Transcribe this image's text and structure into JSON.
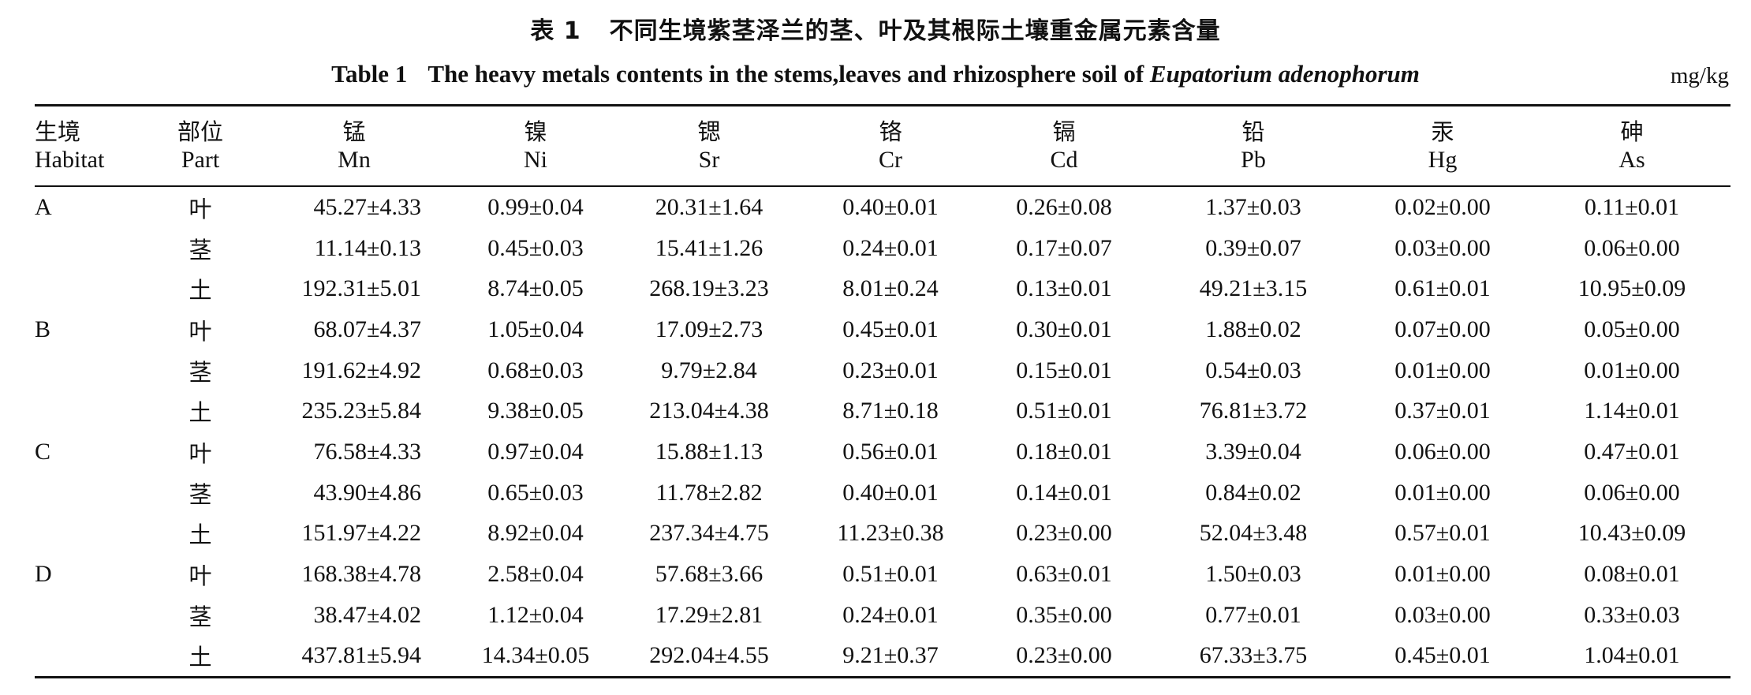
{
  "caption": {
    "zh_number": "表 1",
    "zh_title": "不同生境紫茎泽兰的茎、叶及其根际土壤重金属元素含量",
    "en_number": "Table 1",
    "en_title_prefix": "The heavy metals contents in the stems,leaves and rhizosphere soil of",
    "en_species": "Eupatorium adenophorum",
    "unit": "mg/kg"
  },
  "columns": [
    {
      "zh": "生境",
      "en": "Habitat"
    },
    {
      "zh": "部位",
      "en": "Part"
    },
    {
      "zh": "锰",
      "en": "Mn"
    },
    {
      "zh": "镍",
      "en": "Ni"
    },
    {
      "zh": "锶",
      "en": "Sr"
    },
    {
      "zh": "铬",
      "en": "Cr"
    },
    {
      "zh": "镉",
      "en": "Cd"
    },
    {
      "zh": "铅",
      "en": "Pb"
    },
    {
      "zh": "汞",
      "en": "Hg"
    },
    {
      "zh": "砷",
      "en": "As"
    }
  ],
  "rows": [
    [
      "A",
      "叶",
      "45.27±4.33",
      "0.99±0.04",
      "20.31±1.64",
      "0.40±0.01",
      "0.26±0.08",
      "1.37±0.03",
      "0.02±0.00",
      "0.11±0.01"
    ],
    [
      "",
      "茎",
      "11.14±0.13",
      "0.45±0.03",
      "15.41±1.26",
      "0.24±0.01",
      "0.17±0.07",
      "0.39±0.07",
      "0.03±0.00",
      "0.06±0.00"
    ],
    [
      "",
      "土",
      "192.31±5.01",
      "8.74±0.05",
      "268.19±3.23",
      "8.01±0.24",
      "0.13±0.01",
      "49.21±3.15",
      "0.61±0.01",
      "10.95±0.09"
    ],
    [
      "B",
      "叶",
      "68.07±4.37",
      "1.05±0.04",
      "17.09±2.73",
      "0.45±0.01",
      "0.30±0.01",
      "1.88±0.02",
      "0.07±0.00",
      "0.05±0.00"
    ],
    [
      "",
      "茎",
      "191.62±4.92",
      "0.68±0.03",
      "9.79±2.84",
      "0.23±0.01",
      "0.15±0.01",
      "0.54±0.03",
      "0.01±0.00",
      "0.01±0.00"
    ],
    [
      "",
      "土",
      "235.23±5.84",
      "9.38±0.05",
      "213.04±4.38",
      "8.71±0.18",
      "0.51±0.01",
      "76.81±3.72",
      "0.37±0.01",
      "1.14±0.01"
    ],
    [
      "C",
      "叶",
      "76.58±4.33",
      "0.97±0.04",
      "15.88±1.13",
      "0.56±0.01",
      "0.18±0.01",
      "3.39±0.04",
      "0.06±0.00",
      "0.47±0.01"
    ],
    [
      "",
      "茎",
      "43.90±4.86",
      "0.65±0.03",
      "11.78±2.82",
      "0.40±0.01",
      "0.14±0.01",
      "0.84±0.02",
      "0.01±0.00",
      "0.06±0.00"
    ],
    [
      "",
      "土",
      "151.97±4.22",
      "8.92±0.04",
      "237.34±4.75",
      "11.23±0.38",
      "0.23±0.00",
      "52.04±3.48",
      "0.57±0.01",
      "10.43±0.09"
    ],
    [
      "D",
      "叶",
      "168.38±4.78",
      "2.58±0.04",
      "57.68±3.66",
      "0.51±0.01",
      "0.63±0.01",
      "1.50±0.03",
      "0.01±0.00",
      "0.08±0.01"
    ],
    [
      "",
      "茎",
      "38.47±4.02",
      "1.12±0.04",
      "17.29±2.81",
      "0.24±0.01",
      "0.35±0.00",
      "0.77±0.01",
      "0.03±0.00",
      "0.33±0.03"
    ],
    [
      "",
      "土",
      "437.81±5.94",
      "14.34±0.05",
      "292.04±4.55",
      "9.21±0.37",
      "0.23±0.00",
      "67.33±3.75",
      "0.45±0.01",
      "1.04±0.01"
    ]
  ]
}
